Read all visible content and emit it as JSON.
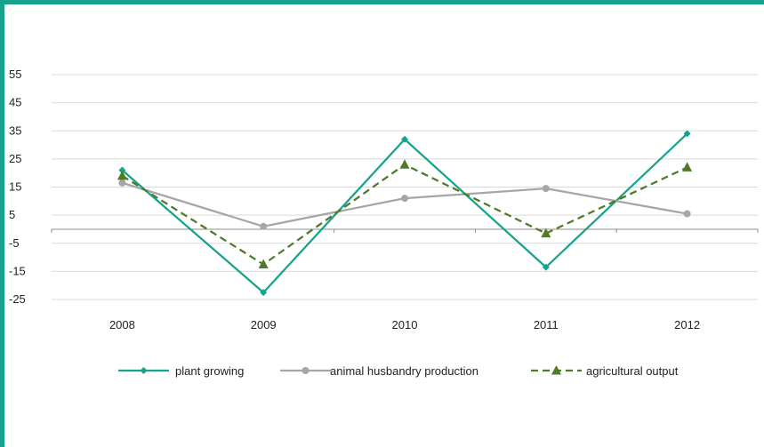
{
  "chart_data": {
    "type": "line",
    "title": "",
    "xlabel": "",
    "ylabel": "",
    "categories": [
      "2008",
      "2009",
      "2010",
      "2011",
      "2012"
    ],
    "y_ticks": [
      "55",
      "45",
      "35",
      "25",
      "15",
      "5",
      "-5",
      "-15",
      "-25"
    ],
    "ylim": [
      -25,
      55
    ],
    "grid": true,
    "legend_position": "bottom",
    "series": [
      {
        "name": "plant growing",
        "values": [
          21.0,
          -22.5,
          32.0,
          -13.5,
          34.0
        ],
        "color": "#16a38c",
        "marker": "diamond",
        "dash": "solid"
      },
      {
        "name": "animal husbandry production",
        "values": [
          16.5,
          1.0,
          11.0,
          14.5,
          5.5
        ],
        "color": "#a6a6a6",
        "marker": "circle",
        "dash": "solid"
      },
      {
        "name": "agricultural output",
        "values": [
          19.0,
          -12.5,
          23.0,
          -1.5,
          22.0
        ],
        "color": "#4f7a28",
        "marker": "triangle",
        "dash": "dashed"
      }
    ]
  }
}
